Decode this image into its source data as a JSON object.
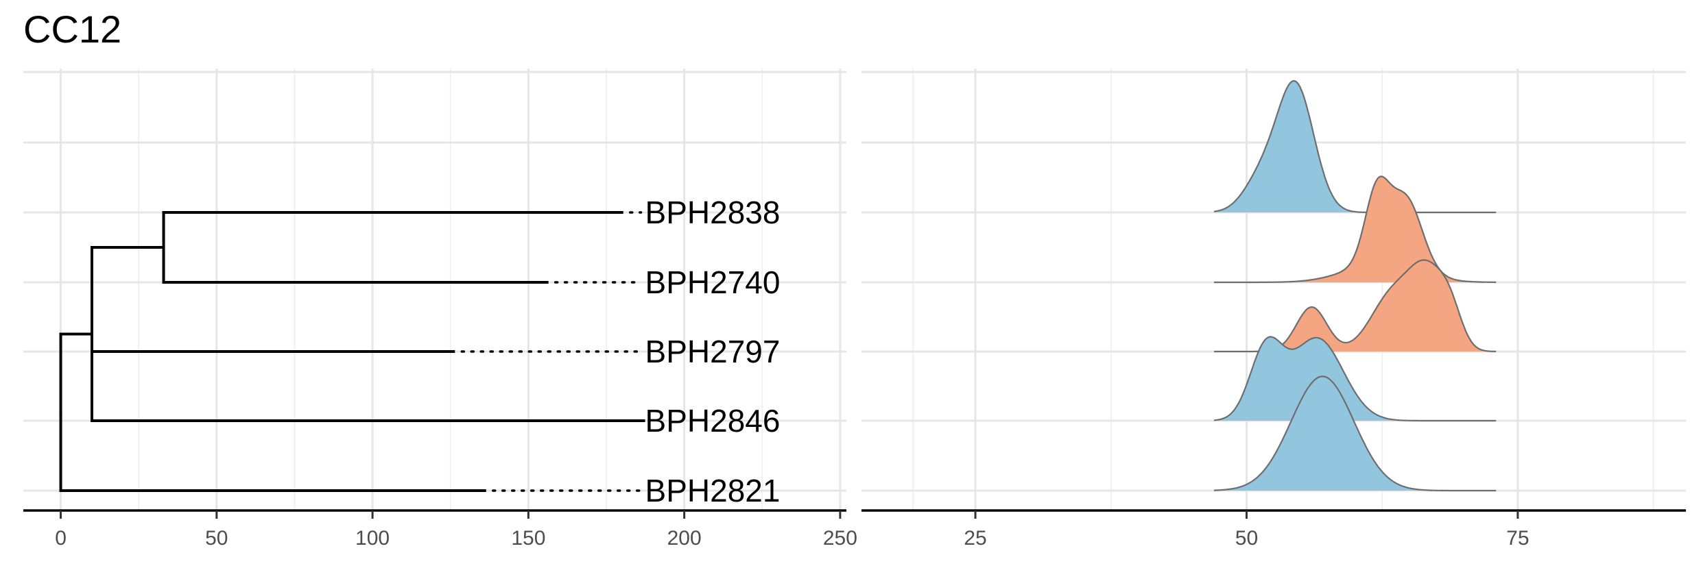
{
  "title": "CC12",
  "chart_data": [
    {
      "type": "dendrogram",
      "title": "",
      "xlabel": "",
      "ylabel": "",
      "xlim": [
        -12,
        252
      ],
      "x_ticks": [
        0,
        50,
        100,
        150,
        200,
        250
      ],
      "x_minor": [
        25,
        75,
        125,
        175,
        225
      ],
      "grid": true,
      "tips": [
        {
          "label": "BPH2838",
          "branch_end": 180
        },
        {
          "label": "BPH2740",
          "branch_end": 156
        },
        {
          "label": "BPH2797",
          "branch_end": 126
        },
        {
          "label": "BPH2846",
          "branch_end": 187
        },
        {
          "label": "BPH2821",
          "branch_end": 136
        }
      ],
      "label_position": 187,
      "nodes": [
        {
          "x": 33,
          "children": [
            "BPH2838",
            "BPH2740"
          ]
        },
        {
          "x": 10,
          "children": [
            "n0",
            "BPH2797",
            "BPH2846"
          ]
        },
        {
          "x": 0,
          "children": [
            "n1",
            "BPH2821"
          ]
        }
      ]
    },
    {
      "type": "ridgeline",
      "title": "",
      "xlabel": "",
      "ylabel": "",
      "xlim": [
        14.5,
        90.5
      ],
      "x_ticks": [
        25,
        50,
        75
      ],
      "x_minor": [
        37.5,
        62.5,
        87.5
      ],
      "density_range": [
        47,
        73
      ],
      "grid": true,
      "colors": {
        "blue": "#92c5de",
        "orange": "#f4a582",
        "outline": "#6e6e6e"
      },
      "ridges": [
        {
          "label": "BPH2838",
          "color": "blue",
          "bumps": [
            [
              54.5,
              1.7,
              1.0
            ],
            [
              51.3,
              1.6,
              0.25
            ]
          ]
        },
        {
          "label": "BPH2740",
          "color": "orange",
          "bumps": [
            [
              62.0,
              1.1,
              0.55
            ],
            [
              64.7,
              1.5,
              0.55
            ],
            [
              62.4,
              3.2,
              0.15
            ]
          ]
        },
        {
          "label": "BPH2797",
          "color": "orange",
          "bumps": [
            [
              56.0,
              1.4,
              0.35
            ],
            [
              63.5,
              2.0,
              0.45
            ],
            [
              66.7,
              1.6,
              0.55
            ],
            [
              68.8,
              1.1,
              0.25
            ]
          ]
        },
        {
          "label": "BPH2846",
          "color": "blue",
          "bumps": [
            [
              51.8,
              1.5,
              0.55
            ],
            [
              56.5,
              2.4,
              0.65
            ]
          ]
        },
        {
          "label": "BPH2821",
          "color": "blue",
          "bumps": [
            [
              57.0,
              2.9,
              0.9
            ]
          ]
        }
      ]
    }
  ]
}
